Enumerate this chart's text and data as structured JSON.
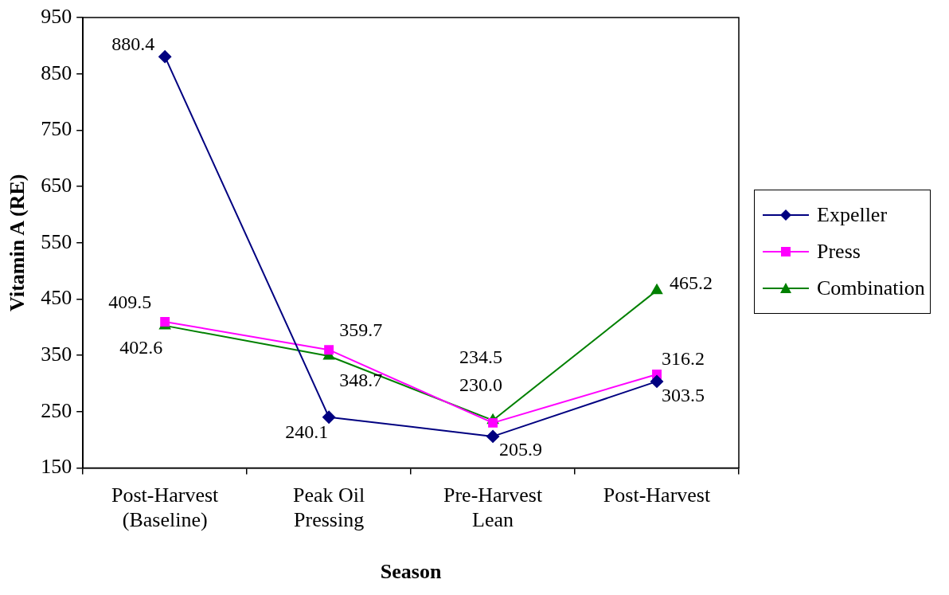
{
  "chart_data": {
    "type": "line",
    "xlabel": "Season",
    "ylabel": "Vitamin A (RE)",
    "categories": [
      "Post-Harvest (Baseline)",
      "Peak Oil Pressing",
      "Pre-Harvest Lean",
      "Post-Harvest"
    ],
    "series": [
      {
        "name": "Expeller",
        "color": "#000080",
        "marker": "diamond",
        "values": [
          880.4,
          240.1,
          205.9,
          303.5
        ],
        "value_labels": [
          "880.4",
          "240.1",
          "205.9",
          "303.5"
        ]
      },
      {
        "name": "Press",
        "color": "#ff00ff",
        "marker": "square",
        "values": [
          409.5,
          359.7,
          230.0,
          316.2
        ],
        "value_labels": [
          "409.5",
          "359.7",
          "230.0",
          "316.2"
        ]
      },
      {
        "name": "Combination",
        "color": "#008000",
        "marker": "triangle",
        "values": [
          402.6,
          348.7,
          234.5,
          465.2
        ],
        "value_labels": [
          "402.6",
          "348.7",
          "234.5",
          "465.2"
        ]
      }
    ],
    "ylim": [
      150,
      950
    ],
    "yticks": [
      150,
      250,
      350,
      450,
      550,
      650,
      750,
      850,
      950
    ],
    "grid": false,
    "legend": "right",
    "line_style": "solid"
  }
}
